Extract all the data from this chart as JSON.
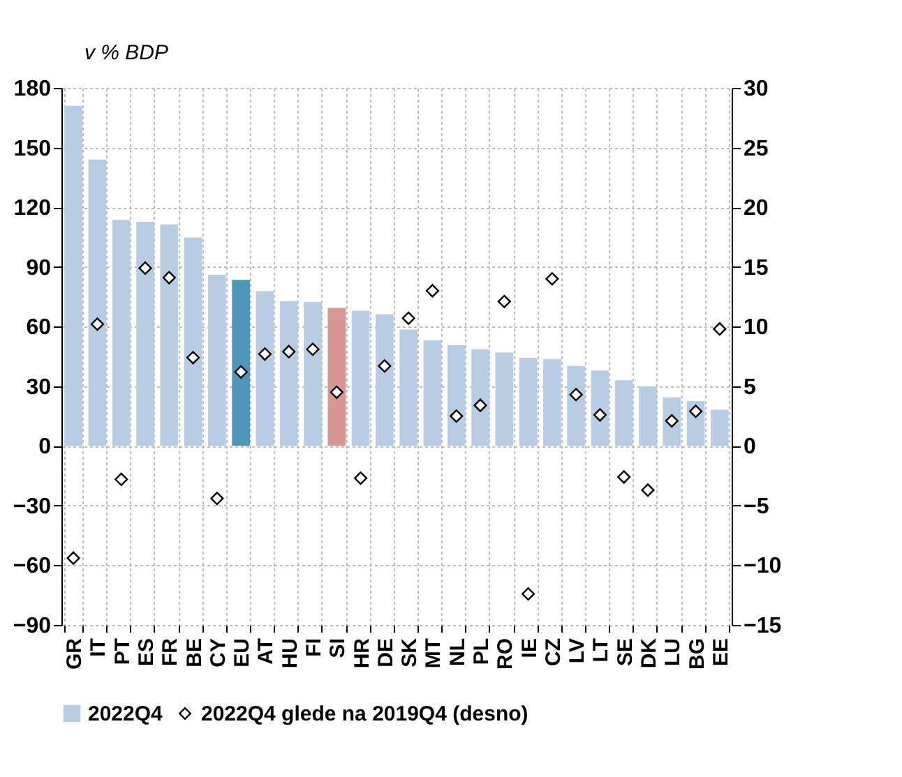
{
  "chart_data": {
    "type": "bar",
    "ylabel": "v % BDP",
    "categories": [
      "GR",
      "IT",
      "PT",
      "ES",
      "FR",
      "BE",
      "CY",
      "EU",
      "AT",
      "HU",
      "FI",
      "SI",
      "HR",
      "DE",
      "SK",
      "MT",
      "NL",
      "PL",
      "RO",
      "IE",
      "CZ",
      "LV",
      "LT",
      "SE",
      "DK",
      "LU",
      "BG",
      "EE"
    ],
    "series": [
      {
        "name": "2022Q4",
        "color": "#b8cce4",
        "colors": [
          "#b8cce4",
          "#b8cce4",
          "#b8cce4",
          "#b8cce4",
          "#b8cce4",
          "#b8cce4",
          "#b8cce4",
          "#4f97b8",
          "#b8cce4",
          "#b8cce4",
          "#b8cce4",
          "#d99694",
          "#b8cce4",
          "#b8cce4",
          "#b8cce4",
          "#b8cce4",
          "#b8cce4",
          "#b8cce4",
          "#b8cce4",
          "#b8cce4",
          "#b8cce4",
          "#b8cce4",
          "#b8cce4",
          "#b8cce4",
          "#b8cce4",
          "#b8cce4",
          "#b8cce4",
          "#b8cce4"
        ],
        "values": [
          171,
          144,
          113.6,
          112.7,
          111.4,
          104.8,
          86,
          83.5,
          77.8,
          72.8,
          72.4,
          69.4,
          68,
          66.2,
          58.5,
          53.1,
          50.6,
          48.6,
          46.9,
          44.3,
          43.7,
          40.3,
          37.9,
          33,
          29.8,
          24.4,
          22.5,
          18.2
        ]
      },
      {
        "name": "2022Q4 glede na 2019Q4 (desno)",
        "type": "scatter",
        "axis": "y2",
        "color": "#000000",
        "values": [
          -9.4,
          10.2,
          -2.8,
          14.9,
          14.1,
          7.4,
          -4.4,
          6.2,
          7.7,
          7.9,
          8.1,
          4.5,
          -2.7,
          6.7,
          10.7,
          13.0,
          2.5,
          3.4,
          12.1,
          -12.4,
          14.0,
          4.3,
          2.6,
          -2.6,
          -3.7,
          2.1,
          2.9,
          9.8
        ]
      }
    ],
    "ylim": [
      -90,
      180
    ],
    "yticks": [
      -90,
      -60,
      -30,
      0,
      30,
      60,
      90,
      120,
      150,
      180
    ],
    "y2lim": [
      -15,
      30
    ],
    "y2ticks": [
      -15,
      -10,
      -5,
      0,
      5,
      10,
      15,
      20,
      25,
      30
    ],
    "grid": true,
    "legend": "bottom",
    "marker": "diamond"
  }
}
